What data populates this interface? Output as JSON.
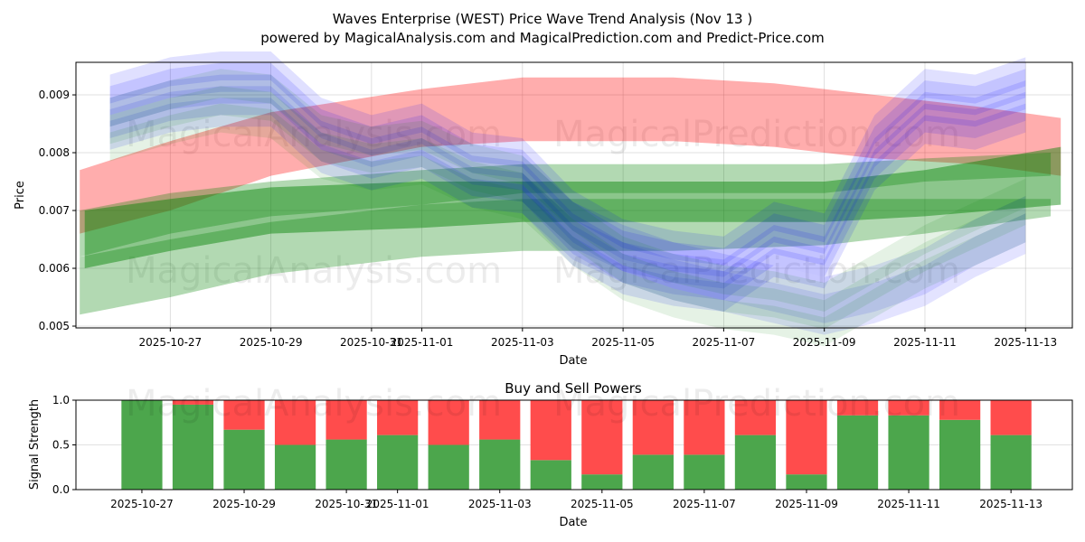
{
  "chart_data": [
    {
      "type": "area",
      "title": "Waves Enterprise (WEST) Price Wave Trend Analysis (Nov 13 )",
      "subtitle": "powered by MagicalAnalysis.com and MagicalPrediction.com and Predict-Price.com",
      "xlabel": "Date",
      "ylabel": "Price",
      "x_reference_date": "2025-10-27",
      "xlim_days": [
        -1.875,
        17.93
      ],
      "ylim": [
        0.004969,
        0.009563
      ],
      "grid": true,
      "x_ticks": [
        {
          "day": 0,
          "label": "2025-10-27"
        },
        {
          "day": 2,
          "label": "2025-10-29"
        },
        {
          "day": 4,
          "label": "2025-10-31"
        },
        {
          "day": 5,
          "label": "2025-11-01"
        },
        {
          "day": 7,
          "label": "2025-11-03"
        },
        {
          "day": 9,
          "label": "2025-11-05"
        },
        {
          "day": 11,
          "label": "2025-11-07"
        },
        {
          "day": 13,
          "label": "2025-11-09"
        },
        {
          "day": 15,
          "label": "2025-11-11"
        },
        {
          "day": 17,
          "label": "2025-11-13"
        }
      ],
      "y_ticks": [
        {
          "value": 0.005,
          "label": "0.005"
        },
        {
          "value": 0.006,
          "label": "0.006"
        },
        {
          "value": 0.007,
          "label": "0.007"
        },
        {
          "value": 0.008,
          "label": "0.008"
        },
        {
          "value": 0.009,
          "label": "0.009"
        }
      ],
      "bands": [
        {
          "name": "red-trend-band",
          "color": "#ff0000",
          "opacity": 0.32,
          "day": [
            -1.8,
            0,
            2,
            5,
            7,
            10,
            12,
            14,
            16,
            17.7
          ],
          "low": [
            0.0066,
            0.007,
            0.0076,
            0.0081,
            0.0082,
            0.0082,
            0.0081,
            0.0079,
            0.0078,
            0.0076
          ],
          "high": [
            0.0077,
            0.0082,
            0.0087,
            0.0091,
            0.0093,
            0.0093,
            0.0092,
            0.009,
            0.0088,
            0.0086
          ]
        },
        {
          "name": "green-lower-band",
          "color": "#008000",
          "opacity": 0.3,
          "day": [
            -1.8,
            0,
            2,
            5,
            7,
            10,
            13,
            15,
            17.5
          ],
          "low": [
            0.0052,
            0.0055,
            0.0059,
            0.0062,
            0.0063,
            0.0063,
            0.0064,
            0.0066,
            0.0069
          ],
          "high": [
            0.0062,
            0.0065,
            0.0068,
            0.0071,
            0.0072,
            0.0072,
            0.0072,
            0.0072,
            0.0072
          ]
        },
        {
          "name": "green-middle-band",
          "color": "#008000",
          "opacity": 0.45,
          "day": [
            -1.7,
            0,
            2,
            5,
            7,
            10,
            13,
            15,
            17.7
          ],
          "low": [
            0.006,
            0.0063,
            0.0066,
            0.0067,
            0.0068,
            0.0068,
            0.0068,
            0.0069,
            0.0071
          ],
          "high": [
            0.007,
            0.0072,
            0.0074,
            0.0075,
            0.0075,
            0.0075,
            0.0075,
            0.0077,
            0.0081
          ]
        },
        {
          "name": "green-upper-band",
          "color": "#008000",
          "opacity": 0.3,
          "day": [
            -1.8,
            0,
            2,
            5,
            7,
            10,
            13,
            15,
            17.5
          ],
          "low": [
            0.0062,
            0.0066,
            0.0069,
            0.0071,
            0.0073,
            0.0073,
            0.0073,
            0.0075,
            0.0076
          ],
          "high": [
            0.007,
            0.0073,
            0.0075,
            0.0077,
            0.0078,
            0.0078,
            0.0078,
            0.0079,
            0.008
          ]
        }
      ],
      "wave_paths": [
        {
          "name": "blue-wave-upper",
          "color": "#0000ff",
          "opacity": 0.12,
          "half_width": 0.00025,
          "offsets": [
            0,
            0.0002,
            -0.0002,
            0.0004,
            -0.0004
          ],
          "day": [
            -1.2,
            0,
            1,
            2,
            3,
            4,
            5,
            6,
            7,
            8,
            9,
            10,
            11,
            12,
            13,
            14,
            15,
            16,
            17
          ],
          "value": [
            0.0087,
            0.009,
            0.0091,
            0.0091,
            0.0083,
            0.008,
            0.0082,
            0.0077,
            0.0076,
            0.0067,
            0.0062,
            0.006,
            0.0059,
            0.0065,
            0.0063,
            0.008,
            0.0088,
            0.0087,
            0.009
          ]
        },
        {
          "name": "blue-wave-lower",
          "color": "#0000ff",
          "opacity": 0.11,
          "half_width": 0.00025,
          "offsets": [
            0,
            0.0003,
            -0.0002
          ],
          "day": [
            7,
            8,
            9,
            10,
            11,
            12,
            13,
            14,
            15,
            16,
            17
          ],
          "value": [
            0.0074,
            0.0066,
            0.0062,
            0.0059,
            0.0057,
            0.0055,
            0.0053,
            0.0055,
            0.0058,
            0.0063,
            0.0067
          ]
        },
        {
          "name": "green-wave",
          "color": "#008000",
          "opacity": 0.1,
          "half_width": 0.00025,
          "offsets": [
            0,
            -0.0003,
            0.0003
          ],
          "day": [
            -1.2,
            0,
            1,
            2,
            3,
            4,
            5,
            6,
            7,
            8,
            9,
            10,
            11,
            12,
            13,
            14,
            15,
            16,
            17
          ],
          "value": [
            0.0084,
            0.0087,
            0.0089,
            0.0088,
            0.0081,
            0.0079,
            0.008,
            0.0076,
            0.0074,
            0.0066,
            0.006,
            0.0057,
            0.0055,
            0.0054,
            0.0052,
            0.0057,
            0.0062,
            0.0066,
            0.007
          ]
        }
      ],
      "watermarks": [
        "MagicalAnalysis.com",
        "MagicalPrediction.com"
      ]
    },
    {
      "type": "bar",
      "title": "Buy and Sell Powers",
      "xlabel": "Date",
      "ylabel": "Signal Strength",
      "ylim": [
        0,
        1
      ],
      "xlim_days": [
        -1.29,
        18.2
      ],
      "grid": true,
      "y_ticks": [
        {
          "value": 0,
          "label": "0.0"
        },
        {
          "value": 0.5,
          "label": "0.5"
        },
        {
          "value": 1,
          "label": "1.0"
        }
      ],
      "x_ticks": [
        {
          "day": 0,
          "label": "2025-10-27"
        },
        {
          "day": 2,
          "label": "2025-10-29"
        },
        {
          "day": 4,
          "label": "2025-10-31"
        },
        {
          "day": 5,
          "label": "2025-11-01"
        },
        {
          "day": 7,
          "label": "2025-11-03"
        },
        {
          "day": 9,
          "label": "2025-11-05"
        },
        {
          "day": 11,
          "label": "2025-11-07"
        },
        {
          "day": 13,
          "label": "2025-11-09"
        },
        {
          "day": 15,
          "label": "2025-11-11"
        },
        {
          "day": 17,
          "label": "2025-11-13"
        }
      ],
      "categories": [
        "2025-10-27",
        "2025-10-28",
        "2025-10-29",
        "2025-10-30",
        "2025-10-31",
        "2025-11-01",
        "2025-11-02",
        "2025-11-03",
        "2025-11-04",
        "2025-11-05",
        "2025-11-06",
        "2025-11-07",
        "2025-11-08",
        "2025-11-09",
        "2025-11-10",
        "2025-11-11",
        "2025-11-12",
        "2025-11-13"
      ],
      "series": [
        {
          "name": "Buy",
          "color": "#4ca64c",
          "values": [
            1.0,
            0.95,
            0.67,
            0.5,
            0.56,
            0.61,
            0.5,
            0.56,
            0.33,
            0.17,
            0.39,
            0.39,
            0.61,
            0.17,
            0.83,
            0.83,
            0.78,
            0.61
          ]
        },
        {
          "name": "Sell",
          "color": "#ff4c4c",
          "values": [
            0.0,
            0.05,
            0.33,
            0.5,
            0.44,
            0.39,
            0.5,
            0.44,
            0.67,
            0.83,
            0.61,
            0.61,
            0.39,
            0.83,
            0.17,
            0.17,
            0.22,
            0.39
          ]
        }
      ],
      "watermarks": [
        "MagicalAnalysis.com",
        "MagicalPrediction.com"
      ]
    }
  ]
}
